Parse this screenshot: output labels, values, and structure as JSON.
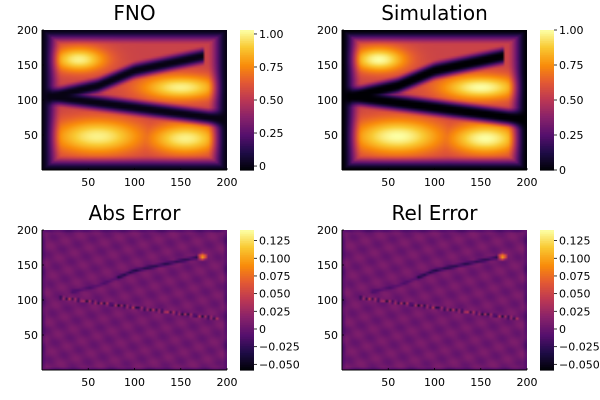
{
  "chart_data": [
    {
      "type": "heatmap",
      "title": "FNO",
      "field": "fno",
      "xlim": [
        0,
        200
      ],
      "ylim": [
        0,
        200
      ],
      "xticks": [
        50,
        100,
        150,
        200
      ],
      "yticks": [
        50,
        100,
        150,
        200
      ],
      "clim": [
        -0.03,
        1.03
      ],
      "cticks": [
        {
          "value": 0,
          "label": "0"
        },
        {
          "value": 0.25,
          "label": "0.25"
        },
        {
          "value": 0.5,
          "label": "0.50"
        },
        {
          "value": 0.75,
          "label": "0.75"
        },
        {
          "value": 1.0,
          "label": "1.00"
        }
      ],
      "colormap": "inferno"
    },
    {
      "type": "heatmap",
      "title": "Simulation",
      "field": "sim",
      "xlim": [
        0,
        200
      ],
      "ylim": [
        0,
        200
      ],
      "xticks": [
        50,
        100,
        150,
        200
      ],
      "yticks": [
        50,
        100,
        150,
        200
      ],
      "clim": [
        0,
        1.0
      ],
      "cticks": [
        {
          "value": 0,
          "label": "0"
        },
        {
          "value": 0.25,
          "label": "0.25"
        },
        {
          "value": 0.5,
          "label": "0.50"
        },
        {
          "value": 0.75,
          "label": "0.75"
        },
        {
          "value": 1.0,
          "label": "1.00"
        }
      ],
      "colormap": "inferno"
    },
    {
      "type": "heatmap",
      "title": "Abs Error",
      "field": "err",
      "xlim": [
        0,
        200
      ],
      "ylim": [
        0,
        200
      ],
      "xticks": [
        50,
        100,
        150,
        200
      ],
      "yticks": [
        50,
        100,
        150,
        200
      ],
      "clim": [
        -0.058,
        0.14
      ],
      "cticks": [
        {
          "value": -0.05,
          "label": "−0.050"
        },
        {
          "value": -0.025,
          "label": "−0.025"
        },
        {
          "value": 0,
          "label": "0"
        },
        {
          "value": 0.025,
          "label": "0.025"
        },
        {
          "value": 0.05,
          "label": "0.050"
        },
        {
          "value": 0.075,
          "label": "0.075"
        },
        {
          "value": 0.1,
          "label": "0.100"
        },
        {
          "value": 0.125,
          "label": "0.125"
        }
      ],
      "colormap": "inferno"
    },
    {
      "type": "heatmap",
      "title": "Rel Error",
      "field": "err",
      "xlim": [
        0,
        200
      ],
      "ylim": [
        0,
        200
      ],
      "xticks": [
        50,
        100,
        150,
        200
      ],
      "yticks": [
        50,
        100,
        150,
        200
      ],
      "clim": [
        -0.058,
        0.14
      ],
      "cticks": [
        {
          "value": -0.05,
          "label": "−0.050"
        },
        {
          "value": -0.025,
          "label": "−0.025"
        },
        {
          "value": 0,
          "label": "0"
        },
        {
          "value": 0.025,
          "label": "0.025"
        },
        {
          "value": 0.05,
          "label": "0.050"
        },
        {
          "value": 0.075,
          "label": "0.075"
        },
        {
          "value": 0.1,
          "label": "0.100"
        },
        {
          "value": 0.125,
          "label": "0.125"
        }
      ],
      "colormap": "inferno"
    }
  ]
}
